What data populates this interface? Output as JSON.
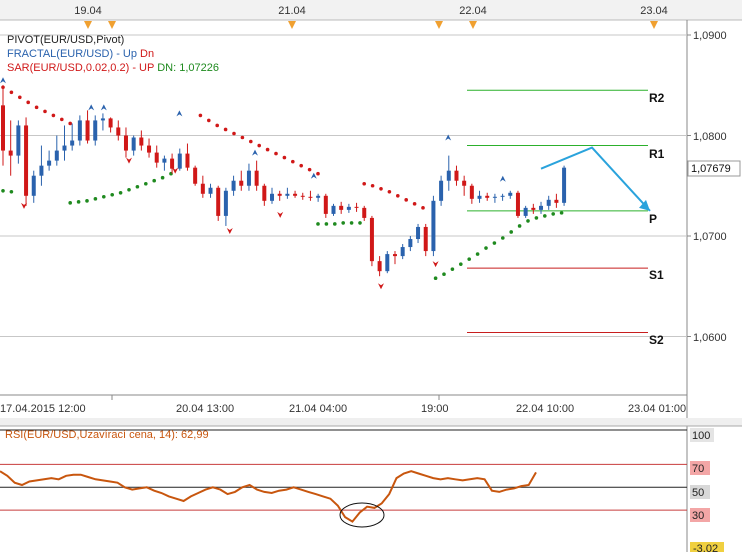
{
  "colors": {
    "up": "#2a62ad",
    "down": "#d01818",
    "sar_up": "#1f8a1f",
    "sar_dn": "#d01818",
    "pivot_r": "#2cb02c",
    "pivot_s": "#c81e1e",
    "rsi": "#c8560e",
    "arrow": "#2aa3dc",
    "grid": "#c7c7c7"
  },
  "top_dates": [
    "19.04",
    "21.04",
    "22.04",
    "23.04"
  ],
  "legend": {
    "pivot": "PIVOT(EUR/USD,Pivot)",
    "fractal_name": "FRACTAL(EUR/USD)",
    "fractal_up": "Up",
    "fractal_dn": "Dn",
    "sar_name": "SAR(EUR/USD,0.02,0.2)",
    "sar_up": "UP",
    "sar_dn_label": "DN:",
    "sar_dn_value": "1,07226"
  },
  "price_axis": {
    "ticks": [
      "1,0900",
      "1,0800",
      "1,0700",
      "1,0600"
    ],
    "current": "1,07679"
  },
  "pivot_labels": [
    "R2",
    "R1",
    "P",
    "S1",
    "S2"
  ],
  "x_axis_labels": [
    "17.04.2015 12:00",
    "20.04 13:00",
    "21.04 04:00",
    "19:00",
    "22.04 10:00",
    "23.04 01:00"
  ],
  "rsi": {
    "title": "RSI(EUR/USD,Uzavírací cena, 14): 62,99",
    "ticks": [
      "100",
      "70",
      "50",
      "30",
      "-3,02"
    ]
  },
  "chart_data": {
    "type": "candlestick",
    "symbol": "EUR/USD",
    "ylim": [
      1.0505,
      1.0915
    ],
    "pivot_levels": {
      "R2": 1.0845,
      "R1": 1.079,
      "P": 1.0725,
      "S1": 1.0668,
      "S2": 1.0604
    },
    "last_price": 1.07679,
    "sar_dn": 1.07226,
    "rsi_last": 62.99,
    "rsi_levels": [
      30,
      50,
      70
    ],
    "rsi_ylim": [
      -3.02,
      100
    ],
    "projection": [
      [
        1.0767,
        1.0788
      ],
      [
        1.0788,
        1.0725
      ]
    ],
    "candles": [
      [
        1.083,
        1.085,
        1.077,
        1.0785
      ],
      [
        1.0785,
        1.0815,
        1.076,
        1.078
      ],
      [
        1.078,
        1.0815,
        1.0772,
        1.081
      ],
      [
        1.081,
        1.0818,
        1.073,
        1.074
      ],
      [
        1.074,
        1.0765,
        1.0733,
        1.076
      ],
      [
        1.076,
        1.079,
        1.075,
        1.077
      ],
      [
        1.077,
        1.0785,
        1.0765,
        1.0775
      ],
      [
        1.0775,
        1.08,
        1.077,
        1.0785
      ],
      [
        1.0785,
        1.081,
        1.0775,
        1.079
      ],
      [
        1.079,
        1.0812,
        1.0785,
        1.0795
      ],
      [
        1.0795,
        1.082,
        1.079,
        1.0815
      ],
      [
        1.0815,
        1.0825,
        1.0792,
        1.0795
      ],
      [
        1.0795,
        1.082,
        1.079,
        1.0815
      ],
      [
        1.0815,
        1.0822,
        1.0805,
        1.0817
      ],
      [
        1.0817,
        1.0818,
        1.0803,
        1.0808
      ],
      [
        1.0808,
        1.0815,
        1.0795,
        1.08
      ],
      [
        1.08,
        1.0808,
        1.0778,
        1.0785
      ],
      [
        1.0785,
        1.08,
        1.078,
        1.0798
      ],
      [
        1.0798,
        1.0805,
        1.0785,
        1.079
      ],
      [
        1.079,
        1.0797,
        1.0778,
        1.0783
      ],
      [
        1.0783,
        1.079,
        1.0768,
        1.0773
      ],
      [
        1.0773,
        1.078,
        1.0765,
        1.0777
      ],
      [
        1.0777,
        1.0782,
        1.0762,
        1.0767
      ],
      [
        1.0767,
        1.0787,
        1.0765,
        1.0782
      ],
      [
        1.0782,
        1.0792,
        1.0765,
        1.0768
      ],
      [
        1.0768,
        1.077,
        1.075,
        1.0752
      ],
      [
        1.0752,
        1.076,
        1.0738,
        1.0742
      ],
      [
        1.0742,
        1.0752,
        1.0738,
        1.0748
      ],
      [
        1.0748,
        1.075,
        1.0715,
        1.072
      ],
      [
        1.072,
        1.0748,
        1.071,
        1.0745
      ],
      [
        1.0745,
        1.076,
        1.074,
        1.0755
      ],
      [
        1.0755,
        1.0765,
        1.0745,
        1.075
      ],
      [
        1.075,
        1.0772,
        1.0745,
        1.0765
      ],
      [
        1.0765,
        1.0775,
        1.0745,
        1.075
      ],
      [
        1.075,
        1.0752,
        1.073,
        1.0735
      ],
      [
        1.0735,
        1.0748,
        1.0732,
        1.0742
      ],
      [
        1.0742,
        1.0745,
        1.0735,
        1.074
      ],
      [
        1.074,
        1.0748,
        1.0737,
        1.0742
      ],
      [
        1.0742,
        1.0745,
        1.0738,
        1.074
      ],
      [
        1.074,
        1.0743,
        1.0736,
        1.0739
      ],
      [
        1.0739,
        1.0745,
        1.0735,
        1.0738
      ],
      [
        1.0738,
        1.0742,
        1.0734,
        1.074
      ],
      [
        1.074,
        1.0742,
        1.0718,
        1.0722
      ],
      [
        1.0722,
        1.0732,
        1.072,
        1.073
      ],
      [
        1.073,
        1.0734,
        1.0722,
        1.0726
      ],
      [
        1.0726,
        1.0732,
        1.0723,
        1.0729
      ],
      [
        1.0729,
        1.0733,
        1.0724,
        1.0728
      ],
      [
        1.0728,
        1.073,
        1.0715,
        1.0718
      ],
      [
        1.0718,
        1.072,
        1.067,
        1.0675
      ],
      [
        1.0675,
        1.068,
        1.066,
        1.0665
      ],
      [
        1.0665,
        1.0685,
        1.0663,
        1.0682
      ],
      [
        1.0682,
        1.0685,
        1.0672,
        1.068
      ],
      [
        1.068,
        1.0692,
        1.0677,
        1.0689
      ],
      [
        1.0689,
        1.07,
        1.0685,
        1.0697
      ],
      [
        1.0697,
        1.0712,
        1.0693,
        1.0709
      ],
      [
        1.0709,
        1.0712,
        1.068,
        1.0685
      ],
      [
        1.0685,
        1.074,
        1.068,
        1.0735
      ],
      [
        1.0735,
        1.076,
        1.073,
        1.0755
      ],
      [
        1.0755,
        1.078,
        1.0745,
        1.0765
      ],
      [
        1.0765,
        1.077,
        1.075,
        1.0755
      ],
      [
        1.0755,
        1.076,
        1.074,
        1.075
      ],
      [
        1.075,
        1.0752,
        1.0732,
        1.0737
      ],
      [
        1.0737,
        1.0745,
        1.0733,
        1.074
      ],
      [
        1.074,
        1.0743,
        1.0735,
        1.0738
      ],
      [
        1.0738,
        1.0742,
        1.0733,
        1.0739
      ],
      [
        1.0739,
        1.0742,
        1.0735,
        1.074
      ],
      [
        1.074,
        1.0745,
        1.0737,
        1.0743
      ],
      [
        1.0743,
        1.0745,
        1.0718,
        1.072
      ],
      [
        1.072,
        1.073,
        1.0718,
        1.0728
      ],
      [
        1.0728,
        1.0732,
        1.0722,
        1.0726
      ],
      [
        1.0726,
        1.0734,
        1.0722,
        1.073
      ],
      [
        1.073,
        1.074,
        1.0726,
        1.0736
      ],
      [
        1.0736,
        1.0742,
        1.0728,
        1.0733
      ],
      [
        1.0733,
        1.077,
        1.073,
        1.0768
      ]
    ],
    "fractals_up": [
      [
        0,
        1.0855
      ],
      [
        21,
        1.0828
      ],
      [
        24,
        1.0828
      ],
      [
        42,
        1.0822
      ],
      [
        60,
        1.0783
      ],
      [
        74,
        1.076
      ],
      [
        106,
        1.0798
      ],
      [
        119,
        1.0757
      ]
    ],
    "fractals_down": [
      [
        5,
        1.073
      ],
      [
        30,
        1.0775
      ],
      [
        41,
        1.0765
      ],
      [
        54,
        1.0705
      ],
      [
        66,
        1.0721
      ],
      [
        90,
        1.065
      ],
      [
        103,
        1.0672
      ]
    ],
    "sar_dn_segments": [
      [
        [
          0,
          1.0848
        ],
        [
          2,
          1.0843
        ],
        [
          4,
          1.0838
        ],
        [
          6,
          1.0833
        ],
        [
          8,
          1.0828
        ],
        [
          10,
          1.0824
        ],
        [
          12,
          1.082
        ],
        [
          14,
          1.0816
        ],
        [
          16,
          1.0812
        ]
      ],
      [
        [
          47,
          1.082
        ],
        [
          49,
          1.0815
        ],
        [
          51,
          1.081
        ],
        [
          53,
          1.0806
        ],
        [
          55,
          1.0802
        ],
        [
          57,
          1.0798
        ],
        [
          59,
          1.0794
        ],
        [
          61,
          1.079
        ],
        [
          63,
          1.0786
        ],
        [
          65,
          1.0782
        ],
        [
          67,
          1.0778
        ],
        [
          69,
          1.0774
        ],
        [
          71,
          1.077
        ],
        [
          73,
          1.0766
        ],
        [
          75,
          1.0762
        ]
      ],
      [
        [
          86,
          1.0752
        ],
        [
          88,
          1.075
        ],
        [
          90,
          1.0747
        ],
        [
          92,
          1.0744
        ],
        [
          94,
          1.074
        ],
        [
          96,
          1.0736
        ],
        [
          98,
          1.0732
        ],
        [
          100,
          1.0728
        ]
      ]
    ],
    "sar_up_segments": [
      [
        [
          0,
          1.0745
        ],
        [
          2,
          1.0744
        ]
      ],
      [
        [
          16,
          1.0733
        ],
        [
          18,
          1.0734
        ],
        [
          20,
          1.0735
        ],
        [
          22,
          1.0737
        ],
        [
          24,
          1.0739
        ],
        [
          26,
          1.0741
        ],
        [
          28,
          1.0743
        ],
        [
          30,
          1.0746
        ],
        [
          32,
          1.0749
        ],
        [
          34,
          1.0752
        ],
        [
          36,
          1.0755
        ],
        [
          38,
          1.0758
        ],
        [
          40,
          1.0762
        ]
      ],
      [
        [
          75,
          1.0712
        ],
        [
          77,
          1.0712
        ],
        [
          79,
          1.0712
        ],
        [
          81,
          1.0713
        ],
        [
          83,
          1.0713
        ],
        [
          85,
          1.0713
        ]
      ],
      [
        [
          103,
          1.0658
        ],
        [
          105,
          1.0662
        ],
        [
          107,
          1.0667
        ],
        [
          109,
          1.0672
        ],
        [
          111,
          1.0677
        ],
        [
          113,
          1.0682
        ],
        [
          115,
          1.0688
        ],
        [
          117,
          1.0693
        ],
        [
          119,
          1.0698
        ],
        [
          121,
          1.0704
        ],
        [
          123,
          1.071
        ],
        [
          125,
          1.0715
        ],
        [
          127,
          1.0718
        ],
        [
          129,
          1.072
        ],
        [
          131,
          1.0722
        ],
        [
          133,
          1.0723
        ]
      ]
    ],
    "rsi_values": [
      64,
      60,
      54,
      52,
      55,
      56,
      57,
      58,
      57,
      60,
      61,
      61,
      59,
      57,
      56,
      55,
      54,
      50,
      48,
      49,
      50,
      47,
      45,
      42,
      40,
      38,
      42,
      45,
      48,
      50,
      48,
      44,
      46,
      50,
      52,
      48,
      46,
      45,
      47,
      48,
      50,
      48,
      46,
      44,
      42,
      40,
      34,
      24,
      20,
      28,
      33,
      32,
      36,
      44,
      58,
      62,
      64,
      62,
      60,
      58,
      57,
      58,
      57,
      56,
      57,
      58,
      57,
      47,
      46,
      48,
      49,
      51,
      52,
      63
    ]
  }
}
